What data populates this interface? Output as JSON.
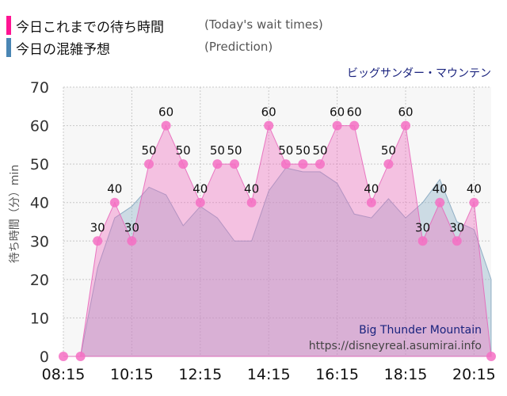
{
  "legend": [
    {
      "label": "今日これまでの待ち時間",
      "label_en": "(Today's wait times)",
      "color": "#ff1493"
    },
    {
      "label": "今日の混雑予想",
      "label_en": "(Prediction)",
      "color": "#4a86b4"
    }
  ],
  "chart_data": {
    "type": "area",
    "attraction_ja": "ビッグサンダー・マウンテン",
    "attraction_en": "Big Thunder Mountain",
    "source_url": "https://disneyreal.asumirai.info",
    "ylabel": "待ち時間（分）min",
    "ylim": [
      0,
      70
    ],
    "yticks": [
      0,
      10,
      20,
      30,
      40,
      50,
      60,
      70
    ],
    "xticks": [
      "08:15",
      "10:15",
      "12:15",
      "14:15",
      "16:15",
      "18:15",
      "20:15"
    ],
    "xlim": [
      "08:15",
      "20:45"
    ],
    "grid": true,
    "series": [
      {
        "name": "今日これまでの待ち時間",
        "color": "#ff1493",
        "points": [
          {
            "x": "08:15",
            "y": 0
          },
          {
            "x": "08:45",
            "y": 0
          },
          {
            "x": "09:15",
            "y": 30
          },
          {
            "x": "09:45",
            "y": 40
          },
          {
            "x": "10:15",
            "y": 30
          },
          {
            "x": "10:45",
            "y": 50
          },
          {
            "x": "11:15",
            "y": 60
          },
          {
            "x": "11:45",
            "y": 50
          },
          {
            "x": "12:15",
            "y": 40
          },
          {
            "x": "12:45",
            "y": 50
          },
          {
            "x": "13:15",
            "y": 50
          },
          {
            "x": "13:45",
            "y": 40
          },
          {
            "x": "14:15",
            "y": 60
          },
          {
            "x": "14:45",
            "y": 50
          },
          {
            "x": "15:15",
            "y": 50
          },
          {
            "x": "15:45",
            "y": 50
          },
          {
            "x": "16:15",
            "y": 60
          },
          {
            "x": "16:45",
            "y": 60
          },
          {
            "x": "17:15",
            "y": 40
          },
          {
            "x": "17:45",
            "y": 50
          },
          {
            "x": "18:15",
            "y": 60
          },
          {
            "x": "18:45",
            "y": 30
          },
          {
            "x": "19:15",
            "y": 40
          },
          {
            "x": "19:45",
            "y": 30
          },
          {
            "x": "20:15",
            "y": 40
          },
          {
            "x": "20:45",
            "y": 0
          }
        ]
      },
      {
        "name": "今日の混雑予想",
        "color": "#4a86b4",
        "points": [
          {
            "x": "08:45",
            "y": 0
          },
          {
            "x": "09:15",
            "y": 23
          },
          {
            "x": "09:45",
            "y": 36
          },
          {
            "x": "10:15",
            "y": 39
          },
          {
            "x": "10:45",
            "y": 44
          },
          {
            "x": "11:15",
            "y": 42
          },
          {
            "x": "11:45",
            "y": 34
          },
          {
            "x": "12:15",
            "y": 39
          },
          {
            "x": "12:45",
            "y": 36
          },
          {
            "x": "13:15",
            "y": 30
          },
          {
            "x": "13:45",
            "y": 30
          },
          {
            "x": "14:15",
            "y": 43
          },
          {
            "x": "14:45",
            "y": 49
          },
          {
            "x": "15:15",
            "y": 48
          },
          {
            "x": "15:45",
            "y": 48
          },
          {
            "x": "16:15",
            "y": 45
          },
          {
            "x": "16:45",
            "y": 37
          },
          {
            "x": "17:15",
            "y": 36
          },
          {
            "x": "17:45",
            "y": 41
          },
          {
            "x": "18:15",
            "y": 36
          },
          {
            "x": "18:45",
            "y": 40
          },
          {
            "x": "19:15",
            "y": 46
          },
          {
            "x": "19:45",
            "y": 35
          },
          {
            "x": "20:15",
            "y": 33
          },
          {
            "x": "20:45",
            "y": 20
          }
        ]
      }
    ]
  }
}
